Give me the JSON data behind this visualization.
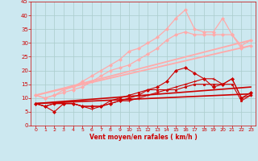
{
  "background_color": "#cce8f0",
  "grid_color": "#aacccc",
  "xlabel": "Vent moyen/en rafales ( km/h )",
  "xlabel_color": "#cc0000",
  "tick_color": "#cc0000",
  "xlim": [
    -0.5,
    23.5
  ],
  "ylim": [
    0,
    45
  ],
  "yticks": [
    0,
    5,
    10,
    15,
    20,
    25,
    30,
    35,
    40,
    45
  ],
  "xticks": [
    0,
    1,
    2,
    3,
    4,
    5,
    6,
    7,
    8,
    9,
    10,
    11,
    12,
    13,
    14,
    15,
    16,
    17,
    18,
    19,
    20,
    21,
    22,
    23
  ],
  "lines": [
    {
      "x": [
        0,
        1,
        2,
        3,
        4,
        5,
        6,
        7,
        8,
        9,
        10,
        11,
        12,
        13,
        14,
        15,
        16,
        17,
        18,
        19,
        20,
        21,
        22,
        23
      ],
      "y": [
        8,
        7,
        5,
        8,
        8,
        7,
        7,
        7,
        8,
        9,
        10,
        11,
        13,
        14,
        16,
        20,
        21,
        19,
        17,
        14,
        15,
        17,
        10,
        12
      ],
      "color": "#cc0000",
      "linewidth": 0.8,
      "marker": "D",
      "markersize": 2.0,
      "linestyle": "-"
    },
    {
      "x": [
        0,
        1,
        2,
        3,
        4,
        5,
        6,
        7,
        8,
        9,
        10,
        11,
        12,
        13,
        14,
        15,
        16,
        17,
        18,
        19,
        20,
        21,
        22,
        23
      ],
      "y": [
        8,
        7,
        8,
        8,
        8,
        7,
        6,
        7,
        8,
        9,
        9,
        10,
        11,
        12,
        13,
        14,
        15,
        16,
        17,
        17,
        15,
        17,
        10,
        11
      ],
      "color": "#cc0000",
      "linewidth": 0.8,
      "marker": "+",
      "markersize": 3.5,
      "linestyle": "-"
    },
    {
      "x": [
        0,
        1,
        2,
        3,
        4,
        5,
        6,
        7,
        8,
        9,
        10,
        11,
        12,
        13,
        14,
        15,
        16,
        17,
        18,
        19,
        20,
        21,
        22,
        23
      ],
      "y": [
        8,
        7,
        8,
        8,
        8,
        7,
        7,
        7,
        9,
        10,
        11,
        12,
        13,
        13,
        13,
        13,
        14,
        15,
        15,
        15,
        15,
        15,
        9,
        11
      ],
      "color": "#cc0000",
      "linewidth": 0.8,
      "marker": "s",
      "markersize": 2.0,
      "linestyle": "-"
    },
    {
      "x": [
        0,
        23
      ],
      "y": [
        8.0,
        11.5
      ],
      "color": "#cc0000",
      "linewidth": 1.2,
      "marker": null,
      "markersize": 0,
      "linestyle": "-"
    },
    {
      "x": [
        0,
        23
      ],
      "y": [
        8.0,
        14.0
      ],
      "color": "#cc0000",
      "linewidth": 1.2,
      "marker": null,
      "markersize": 0,
      "linestyle": "-"
    },
    {
      "x": [
        0,
        1,
        2,
        3,
        4,
        5,
        6,
        7,
        8,
        9,
        10,
        11,
        12,
        13,
        14,
        15,
        16,
        17,
        18,
        19,
        20,
        21,
        22,
        23
      ],
      "y": [
        11,
        10,
        11,
        12,
        13,
        14,
        16,
        18,
        20,
        21,
        22,
        24,
        26,
        28,
        31,
        33,
        34,
        33,
        33,
        33,
        33,
        33,
        29,
        31
      ],
      "color": "#ffaaaa",
      "linewidth": 0.9,
      "marker": "D",
      "markersize": 2.0,
      "linestyle": "-"
    },
    {
      "x": [
        0,
        1,
        2,
        3,
        4,
        5,
        6,
        7,
        8,
        9,
        10,
        11,
        12,
        13,
        14,
        15,
        16,
        17,
        18,
        19,
        20,
        21,
        22,
        23
      ],
      "y": [
        11,
        10,
        11,
        13,
        14,
        16,
        18,
        20,
        22,
        24,
        27,
        28,
        30,
        32,
        35,
        39,
        42,
        35,
        34,
        34,
        39,
        33,
        28,
        29
      ],
      "color": "#ffaaaa",
      "linewidth": 0.9,
      "marker": "D",
      "markersize": 2.0,
      "linestyle": "-"
    },
    {
      "x": [
        0,
        23
      ],
      "y": [
        11.0,
        31.0
      ],
      "color": "#ffaaaa",
      "linewidth": 1.3,
      "marker": null,
      "markersize": 0,
      "linestyle": "-"
    },
    {
      "x": [
        0,
        23
      ],
      "y": [
        11.0,
        29.0
      ],
      "color": "#ffaaaa",
      "linewidth": 1.3,
      "marker": null,
      "markersize": 0,
      "linestyle": "-"
    }
  ],
  "wind_angles": [
    225,
    270,
    315,
    315,
    270,
    270,
    315,
    315,
    270,
    270,
    270,
    315,
    270,
    315,
    270,
    270,
    270,
    270,
    270,
    270,
    270,
    225,
    225,
    270
  ],
  "arrow_color": "#cc0000"
}
